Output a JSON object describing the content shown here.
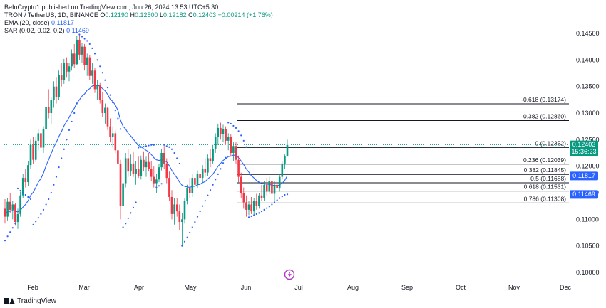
{
  "publisher_line": "BeInCrypto1 published on TradingView.com, Jun 26, 2024 13:53 UTC+5:30",
  "symbol": {
    "name": "TRON / TetherUS, 1D, BINANCE",
    "o_label": "O",
    "o": "0.12190",
    "h_label": "H",
    "h": "0.12500",
    "l_label": "L",
    "l": "0.12182",
    "c_label": "C",
    "c": "0.12403",
    "change": "+0.00214 (+1.76%)"
  },
  "indicators": {
    "ema_label": "EMA (20, close)",
    "ema_value": "0.11817",
    "sar_label": "SAR (0.02, 0.02, 0.2)",
    "sar_value": "0.11469"
  },
  "footer": {
    "brand": "TradingView",
    "flash_icon": "lightning-icon"
  },
  "colors": {
    "up": "#089981",
    "down": "#f23645",
    "ema": "#2962ff",
    "sar": "#2962ff",
    "price_badge": "#089981",
    "ema_badge": "#2962ff",
    "sar_badge": "#2962ff",
    "fib": "#131722"
  },
  "chart_data": {
    "type": "candlestick",
    "y_scale": "linear",
    "ylim": [
      0.0975,
      0.1485
    ],
    "y_ticks": [
      "0.14500",
      "0.14000",
      "0.13500",
      "0.13000",
      "0.12500",
      "0.12000",
      "0.11500",
      "0.11000",
      "0.10500",
      "0.10000"
    ],
    "x_ticks": [
      "Feb",
      "Mar",
      "Apr",
      "May",
      "Jun",
      "Jul",
      "Aug",
      "Sep",
      "Oct",
      "Nov",
      "Dec"
    ],
    "current_price": "0.12403",
    "countdown": "15:36:23",
    "ema_last": "0.11817",
    "sar_last": "0.11469",
    "fib_levels": [
      {
        "label": "-0.618 (0.13174)",
        "value": 0.13174
      },
      {
        "label": "-0.382 (0.12860)",
        "value": 0.1286
      },
      {
        "label": "0 (0.12352)",
        "value": 0.12352
      },
      {
        "label": "0.236 (0.12039)",
        "value": 0.12039
      },
      {
        "label": "0.382 (0.11845)",
        "value": 0.11845
      },
      {
        "label": "0.5 (0.11688)",
        "value": 0.11688
      },
      {
        "label": "0.618 (0.11531)",
        "value": 0.11531
      },
      {
        "label": "0.786 (0.11308)",
        "value": 0.11308
      }
    ],
    "candles": [
      [
        0.112,
        0.1138,
        0.1092,
        0.1105
      ],
      [
        0.1105,
        0.114,
        0.1098,
        0.1133
      ],
      [
        0.1133,
        0.115,
        0.1112,
        0.1118
      ],
      [
        0.1118,
        0.1135,
        0.11,
        0.1128
      ],
      [
        0.1128,
        0.1131,
        0.1088,
        0.1095
      ],
      [
        0.1095,
        0.112,
        0.1082,
        0.111
      ],
      [
        0.111,
        0.1152,
        0.1105,
        0.1145
      ],
      [
        0.1145,
        0.1185,
        0.114,
        0.1178
      ],
      [
        0.1178,
        0.1195,
        0.116,
        0.117
      ],
      [
        0.117,
        0.121,
        0.1162,
        0.1202
      ],
      [
        0.1202,
        0.125,
        0.1195,
        0.124
      ],
      [
        0.124,
        0.1255,
        0.1205,
        0.1212
      ],
      [
        0.1212,
        0.1255,
        0.1208,
        0.1248
      ],
      [
        0.1248,
        0.127,
        0.123,
        0.1262
      ],
      [
        0.1262,
        0.128,
        0.1228,
        0.1235
      ],
      [
        0.1235,
        0.1275,
        0.1225,
        0.127
      ],
      [
        0.127,
        0.132,
        0.1262,
        0.1312
      ],
      [
        0.1312,
        0.1345,
        0.129,
        0.13
      ],
      [
        0.13,
        0.133,
        0.128,
        0.1325
      ],
      [
        0.1325,
        0.136,
        0.131,
        0.135
      ],
      [
        0.135,
        0.1368,
        0.1318,
        0.133
      ],
      [
        0.133,
        0.138,
        0.1325,
        0.1372
      ],
      [
        0.1372,
        0.1395,
        0.135,
        0.1362
      ],
      [
        0.1362,
        0.1402,
        0.1355,
        0.1395
      ],
      [
        0.1395,
        0.1405,
        0.1368,
        0.1378
      ],
      [
        0.1378,
        0.1395,
        0.136,
        0.1388
      ],
      [
        0.1388,
        0.142,
        0.138,
        0.1412
      ],
      [
        0.1412,
        0.143,
        0.1385,
        0.1392
      ],
      [
        0.1392,
        0.1445,
        0.139,
        0.1438
      ],
      [
        0.1438,
        0.1448,
        0.14,
        0.141
      ],
      [
        0.141,
        0.1432,
        0.1395,
        0.1425
      ],
      [
        0.1425,
        0.143,
        0.138,
        0.139
      ],
      [
        0.139,
        0.1412,
        0.137,
        0.1405
      ],
      [
        0.1405,
        0.141,
        0.1362,
        0.137
      ],
      [
        0.137,
        0.1395,
        0.1355,
        0.138
      ],
      [
        0.138,
        0.1385,
        0.1338,
        0.1345
      ],
      [
        0.1345,
        0.1362,
        0.1325,
        0.1352
      ],
      [
        0.1352,
        0.1358,
        0.1318,
        0.1325
      ],
      [
        0.1325,
        0.134,
        0.1292,
        0.13
      ],
      [
        0.13,
        0.1318,
        0.128,
        0.131
      ],
      [
        0.131,
        0.1312,
        0.1268,
        0.1275
      ],
      [
        0.1275,
        0.129,
        0.1245,
        0.1255
      ],
      [
        0.1255,
        0.1275,
        0.1235,
        0.1262
      ],
      [
        0.1262,
        0.1268,
        0.1225,
        0.123
      ],
      [
        0.123,
        0.124,
        0.1195,
        0.1205
      ],
      [
        0.1205,
        0.1212,
        0.11,
        0.1125
      ],
      [
        0.1125,
        0.1175,
        0.1102,
        0.1168
      ],
      [
        0.1168,
        0.1225,
        0.116,
        0.1215
      ],
      [
        0.1215,
        0.1232,
        0.118,
        0.119
      ],
      [
        0.119,
        0.1222,
        0.1182,
        0.1205
      ],
      [
        0.1205,
        0.1228,
        0.118,
        0.1185
      ],
      [
        0.1185,
        0.121,
        0.1165,
        0.1195
      ],
      [
        0.1195,
        0.1218,
        0.1178,
        0.1182
      ],
      [
        0.1182,
        0.122,
        0.1175,
        0.1212
      ],
      [
        0.1212,
        0.1228,
        0.119,
        0.1198
      ],
      [
        0.1198,
        0.1218,
        0.118,
        0.1208
      ],
      [
        0.1208,
        0.1225,
        0.119,
        0.1195
      ],
      [
        0.1195,
        0.121,
        0.1172,
        0.118
      ],
      [
        0.118,
        0.12,
        0.116,
        0.1168
      ],
      [
        0.1168,
        0.1185,
        0.115,
        0.1175
      ],
      [
        0.1175,
        0.1205,
        0.117,
        0.1198
      ],
      [
        0.1198,
        0.1232,
        0.1192,
        0.1225
      ],
      [
        0.1225,
        0.1238,
        0.1195,
        0.1205
      ],
      [
        0.1205,
        0.1215,
        0.1168,
        0.1178
      ],
      [
        0.1178,
        0.119,
        0.1135,
        0.1142
      ],
      [
        0.1142,
        0.1155,
        0.11,
        0.111
      ],
      [
        0.111,
        0.114,
        0.109,
        0.1128
      ],
      [
        0.1128,
        0.114,
        0.1105,
        0.1115
      ],
      [
        0.1115,
        0.1128,
        0.108,
        0.1095
      ],
      [
        0.1095,
        0.1112,
        0.105,
        0.11
      ],
      [
        0.11,
        0.114,
        0.1092,
        0.1135
      ],
      [
        0.1135,
        0.1165,
        0.1128,
        0.1158
      ],
      [
        0.1158,
        0.1178,
        0.114,
        0.115
      ],
      [
        0.115,
        0.1185,
        0.1142,
        0.1178
      ],
      [
        0.1178,
        0.119,
        0.1155,
        0.1165
      ],
      [
        0.1165,
        0.1192,
        0.1158,
        0.1185
      ],
      [
        0.1185,
        0.1205,
        0.117,
        0.1178
      ],
      [
        0.1178,
        0.1202,
        0.1168,
        0.1195
      ],
      [
        0.1195,
        0.1215,
        0.118,
        0.1188
      ],
      [
        0.1188,
        0.1222,
        0.1182,
        0.1215
      ],
      [
        0.1215,
        0.1232,
        0.1198,
        0.121
      ],
      [
        0.121,
        0.124,
        0.1205,
        0.1232
      ],
      [
        0.1232,
        0.1262,
        0.1225,
        0.1255
      ],
      [
        0.1255,
        0.128,
        0.124,
        0.1272
      ],
      [
        0.1272,
        0.1282,
        0.125,
        0.126
      ],
      [
        0.126,
        0.1278,
        0.1245,
        0.127
      ],
      [
        0.127,
        0.1275,
        0.124,
        0.1248
      ],
      [
        0.1248,
        0.1262,
        0.123,
        0.1255
      ],
      [
        0.1255,
        0.126,
        0.1218,
        0.1225
      ],
      [
        0.1225,
        0.1245,
        0.121,
        0.1238
      ],
      [
        0.1238,
        0.1245,
        0.1205,
        0.1212
      ],
      [
        0.1212,
        0.122,
        0.117,
        0.118
      ],
      [
        0.118,
        0.1188,
        0.114,
        0.115
      ],
      [
        0.115,
        0.116,
        0.112,
        0.1132
      ],
      [
        0.1132,
        0.1145,
        0.1105,
        0.1118
      ],
      [
        0.1118,
        0.1135,
        0.1108,
        0.1128
      ],
      [
        0.1128,
        0.1142,
        0.111,
        0.1115
      ],
      [
        0.1115,
        0.114,
        0.1108,
        0.1135
      ],
      [
        0.1135,
        0.1148,
        0.1118,
        0.1125
      ],
      [
        0.1125,
        0.115,
        0.112,
        0.1145
      ],
      [
        0.1145,
        0.1165,
        0.1135,
        0.114
      ],
      [
        0.114,
        0.1172,
        0.1135,
        0.1165
      ],
      [
        0.1165,
        0.1178,
        0.1145,
        0.1152
      ],
      [
        0.1152,
        0.118,
        0.1148,
        0.1172
      ],
      [
        0.1172,
        0.1178,
        0.114,
        0.1148
      ],
      [
        0.1148,
        0.1172,
        0.113,
        0.1165
      ],
      [
        0.1165,
        0.1178,
        0.115,
        0.1158
      ],
      [
        0.1158,
        0.1185,
        0.1152,
        0.118
      ],
      [
        0.118,
        0.121,
        0.1175,
        0.1205
      ],
      [
        0.1205,
        0.1222,
        0.1195,
        0.1219
      ],
      [
        0.1219,
        0.125,
        0.1218,
        0.124
      ]
    ],
    "ema": [
      0.1112,
      0.1114,
      0.1115,
      0.1117,
      0.1115,
      0.1114,
      0.1117,
      0.1123,
      0.1128,
      0.1135,
      0.1145,
      0.1151,
      0.116,
      0.117,
      0.1177,
      0.1187,
      0.1201,
      0.1212,
      0.1224,
      0.1236,
      0.1245,
      0.1256,
      0.1265,
      0.1276,
      0.1284,
      0.1292,
      0.1302,
      0.1309,
      0.1319,
      0.1325,
      0.1332,
      0.1336,
      0.1343,
      0.1346,
      0.1351,
      0.1352,
      0.1352,
      0.1351,
      0.1346,
      0.1342,
      0.1335,
      0.1326,
      0.1322,
      0.1315,
      0.1305,
      0.1287,
      0.1275,
      0.127,
      0.1262,
      0.1257,
      0.1251,
      0.1245,
      0.1239,
      0.1237,
      0.1233,
      0.123,
      0.1227,
      0.1222,
      0.1216,
      0.1212,
      0.1211,
      0.1212,
      0.1211,
      0.1208,
      0.1201,
      0.1192,
      0.1185,
      0.1178,
      0.117,
      0.1164,
      0.1162,
      0.1161,
      0.116,
      0.1162,
      0.1162,
      0.1165,
      0.1166,
      0.1169,
      0.1171,
      0.1176,
      0.118,
      0.1185,
      0.1192,
      0.12,
      0.1205,
      0.1211,
      0.1214,
      0.1218,
      0.1219,
      0.1221,
      0.122,
      0.1216,
      0.121,
      0.1203,
      0.1195,
      0.1189,
      0.1182,
      0.1178,
      0.1173,
      0.117,
      0.1167,
      0.1167,
      0.1166,
      0.1166,
      0.1164,
      0.1164,
      0.1163,
      0.1165,
      0.1168,
      0.1173,
      0.1182
    ],
    "sar": [
      0.106,
      0.1068,
      0.1076,
      0.1084,
      0.1092,
      0.1158,
      0.1154,
      0.115,
      0.1146,
      0.1142,
      0.1138,
      0.109,
      0.1096,
      0.1103,
      0.111,
      0.1118,
      0.1128,
      0.1138,
      0.115,
      0.1165,
      0.118,
      0.1198,
      0.1215,
      0.1232,
      0.125,
      0.1268,
      0.1284,
      0.13,
      0.1318,
      0.1448,
      0.1444,
      0.144,
      0.1436,
      0.143,
      0.1422,
      0.1412,
      0.14,
      0.1388,
      0.1376,
      0.1362,
      0.1348,
      0.1334,
      0.132,
      0.1305,
      0.129,
      0.127,
      0.1085,
      0.1092,
      0.1102,
      0.1112,
      0.1122,
      0.1132,
      0.1235,
      0.1236,
      0.1237,
      0.1238,
      0.1239,
      0.124,
      0.124,
      0.116,
      0.1163,
      0.1167,
      0.124,
      0.1238,
      0.1236,
      0.1232,
      0.1225,
      0.1215,
      0.1205,
      0.105,
      0.1058,
      0.1066,
      0.1075,
      0.1085,
      0.1095,
      0.1105,
      0.1115,
      0.1125,
      0.1135,
      0.1145,
      0.1155,
      0.1165,
      0.1175,
      0.1185,
      0.1195,
      0.1206,
      0.1216,
      0.1282,
      0.128,
      0.1276,
      0.1272,
      0.1266,
      0.1258,
      0.1248,
      0.1236,
      0.1104,
      0.1106,
      0.1108,
      0.111,
      0.1112,
      0.1115,
      0.1118,
      0.1121,
      0.1124,
      0.1128,
      0.1132,
      0.1136,
      0.114,
      0.1143,
      0.1146,
      0.1147
    ]
  }
}
